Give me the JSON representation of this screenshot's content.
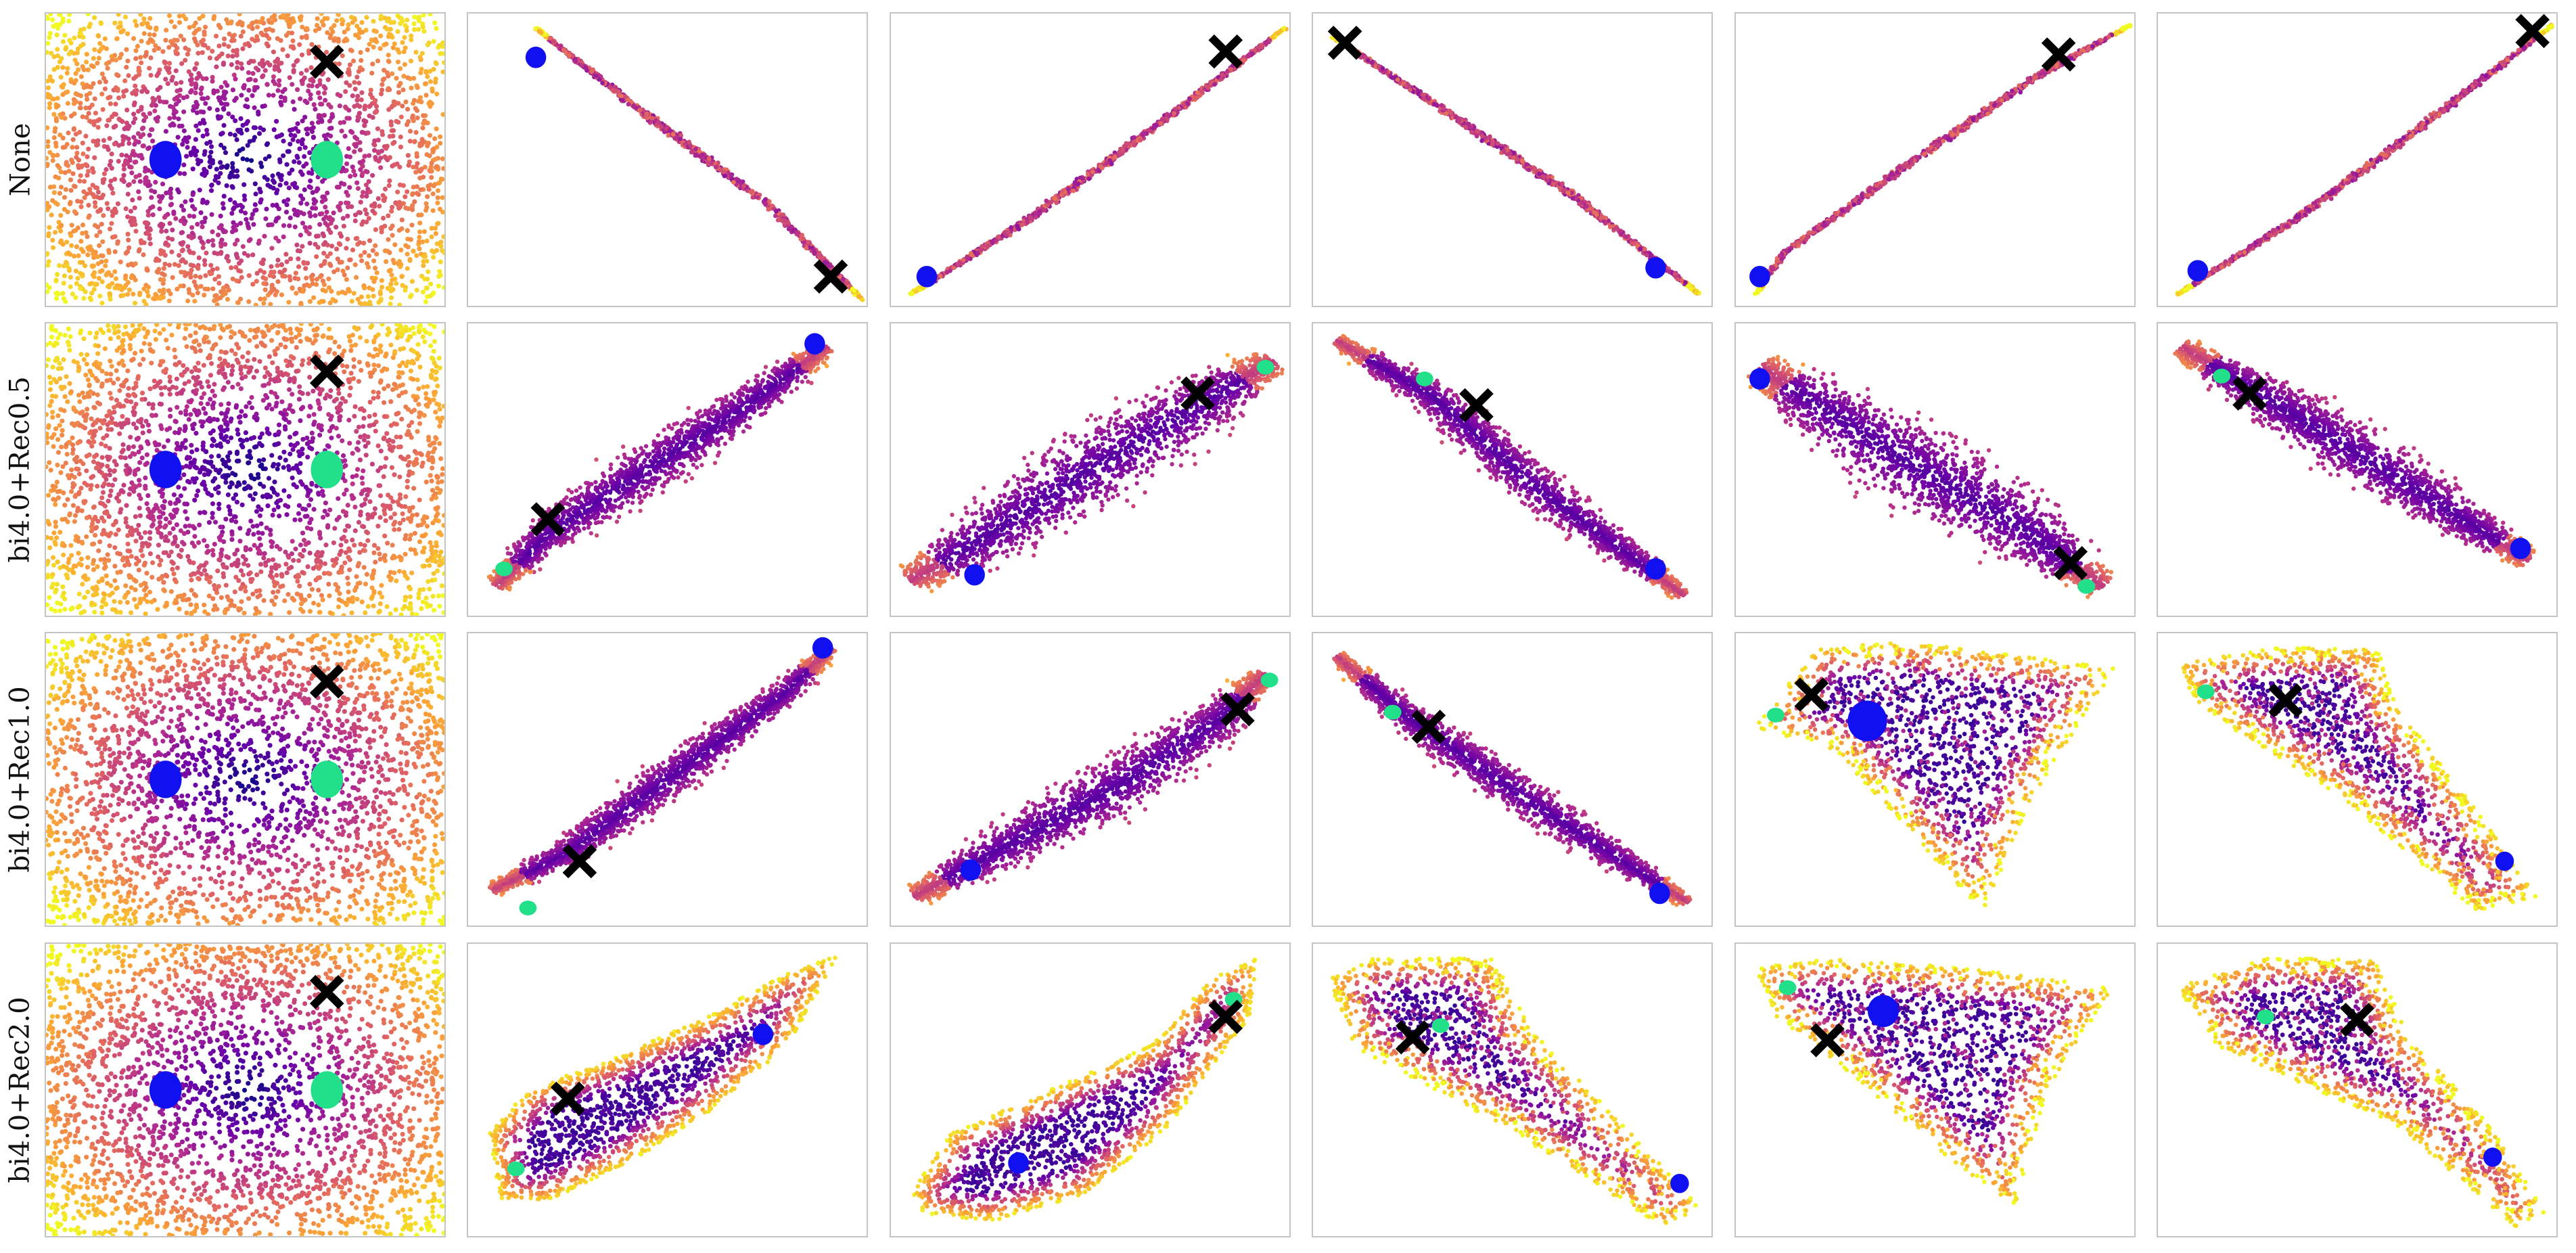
{
  "figure": {
    "colormap": [
      "#0d0887",
      "#6a00a8",
      "#b12a90",
      "#e16462",
      "#fca636",
      "#f0f921"
    ],
    "marker_colors": {
      "blue_cluster": "#1010f0",
      "green_cluster": "#22e08a",
      "cross": "#000000"
    }
  },
  "chart_data": {
    "type": "scatter",
    "title": "",
    "xlabel": "",
    "ylabel": "",
    "grid": false,
    "legend": "none",
    "axes_ticks": "hidden",
    "rows": [
      {
        "label": "None",
        "panels": [
          {
            "kind": "disk"
          },
          {
            "kind": "curve",
            "path": [
              [
                0.17,
                0.05
              ],
              [
                0.45,
                0.35
              ],
              [
                0.75,
                0.65
              ],
              [
                0.99,
                0.98
              ]
            ],
            "width": 0.012,
            "blue": [
              0.17,
              0.15
            ],
            "green": null,
            "cross": [
              0.91,
              0.9
            ]
          },
          {
            "kind": "curve",
            "path": [
              [
                0.05,
                0.96
              ],
              [
                0.35,
                0.7
              ],
              [
                0.65,
                0.4
              ],
              [
                0.99,
                0.05
              ]
            ],
            "width": 0.012,
            "blue": [
              0.09,
              0.9
            ],
            "green": null,
            "cross": [
              0.84,
              0.13
            ]
          },
          {
            "kind": "curve",
            "path": [
              [
                0.05,
                0.08
              ],
              [
                0.35,
                0.35
              ],
              [
                0.65,
                0.62
              ],
              [
                0.97,
                0.96
              ]
            ],
            "width": 0.012,
            "blue": [
              0.86,
              0.87
            ],
            "green": null,
            "cross": [
              0.08,
              0.1
            ]
          },
          {
            "kind": "curve",
            "path": [
              [
                0.05,
                0.96
              ],
              [
                0.12,
                0.82
              ],
              [
                0.45,
                0.5
              ],
              [
                0.75,
                0.22
              ],
              [
                0.99,
                0.04
              ]
            ],
            "width": 0.012,
            "blue": [
              0.06,
              0.9
            ],
            "green": null,
            "cross": [
              0.81,
              0.14
            ]
          },
          {
            "kind": "curve",
            "path": [
              [
                0.05,
                0.96
              ],
              [
                0.35,
                0.7
              ],
              [
                0.65,
                0.4
              ],
              [
                0.99,
                0.04
              ]
            ],
            "width": 0.012,
            "blue": [
              0.1,
              0.88
            ],
            "green": null,
            "cross": [
              0.94,
              0.06
            ]
          }
        ]
      },
      {
        "label": "bi4.0+Rec0.5",
        "panels": [
          {
            "kind": "disk"
          },
          {
            "kind": "curve",
            "path": [
              [
                0.07,
                0.9
              ],
              [
                0.2,
                0.72
              ],
              [
                0.45,
                0.5
              ],
              [
                0.68,
                0.3
              ],
              [
                0.9,
                0.08
              ]
            ],
            "width": 0.085,
            "blue": [
              0.87,
              0.07
            ],
            "green": [
              0.09,
              0.84
            ],
            "cross": [
              0.2,
              0.67
            ]
          },
          {
            "kind": "curve",
            "path": [
              [
                0.05,
                0.88
              ],
              [
                0.25,
                0.72
              ],
              [
                0.5,
                0.5
              ],
              [
                0.75,
                0.3
              ],
              [
                0.96,
                0.13
              ]
            ],
            "width": 0.14,
            "blue": [
              0.21,
              0.86
            ],
            "green": [
              0.94,
              0.15
            ],
            "cross": [
              0.77,
              0.24
            ]
          },
          {
            "kind": "curve",
            "path": [
              [
                0.06,
                0.06
              ],
              [
                0.3,
                0.25
              ],
              [
                0.55,
                0.55
              ],
              [
                0.78,
                0.78
              ],
              [
                0.93,
                0.93
              ]
            ],
            "width": 0.07,
            "blue": [
              0.86,
              0.84
            ],
            "green": [
              0.28,
              0.19
            ],
            "cross": [
              0.41,
              0.28
            ]
          },
          {
            "kind": "curve",
            "path": [
              [
                0.06,
                0.15
              ],
              [
                0.4,
                0.45
              ],
              [
                0.72,
                0.7
              ],
              [
                0.92,
                0.9
              ]
            ],
            "width": 0.15,
            "blue": [
              0.06,
              0.19
            ],
            "green": [
              0.88,
              0.9
            ],
            "cross": [
              0.84,
              0.82
            ]
          },
          {
            "kind": "curve",
            "path": [
              [
                0.06,
                0.08
              ],
              [
                0.3,
                0.28
              ],
              [
                0.6,
                0.53
              ],
              [
                0.93,
                0.81
              ]
            ],
            "width": 0.1,
            "blue": [
              0.91,
              0.77
            ],
            "green": [
              0.16,
              0.18
            ],
            "cross": [
              0.23,
              0.24
            ]
          }
        ]
      },
      {
        "label": "bi4.0+Rec1.0",
        "panels": [
          {
            "kind": "disk"
          },
          {
            "kind": "curve",
            "path": [
              [
                0.06,
                0.88
              ],
              [
                0.25,
                0.75
              ],
              [
                0.55,
                0.45
              ],
              [
                0.8,
                0.2
              ],
              [
                0.91,
                0.05
              ]
            ],
            "width": 0.065,
            "blue": [
              0.89,
              0.05
            ],
            "green": [
              0.15,
              0.94
            ],
            "cross": [
              0.28,
              0.78
            ]
          },
          {
            "kind": "curve",
            "path": [
              [
                0.06,
                0.9
              ],
              [
                0.3,
                0.72
              ],
              [
                0.6,
                0.5
              ],
              [
                0.82,
                0.3
              ],
              [
                0.94,
                0.14
              ]
            ],
            "width": 0.1,
            "blue": [
              0.2,
              0.81
            ],
            "green": [
              0.95,
              0.16
            ],
            "cross": [
              0.87,
              0.26
            ]
          },
          {
            "kind": "curve",
            "path": [
              [
                0.06,
                0.08
              ],
              [
                0.25,
                0.3
              ],
              [
                0.55,
                0.58
              ],
              [
                0.8,
                0.8
              ],
              [
                0.94,
                0.92
              ]
            ],
            "width": 0.065,
            "blue": [
              0.87,
              0.89
            ],
            "green": [
              0.2,
              0.27
            ],
            "cross": [
              0.29,
              0.32
            ]
          },
          {
            "kind": "fan",
            "polygon": [
              [
                0.05,
                0.32
              ],
              [
                0.2,
                0.05
              ],
              [
                0.45,
                0.03
              ],
              [
                0.95,
                0.12
              ],
              [
                0.75,
                0.55
              ],
              [
                0.62,
                0.95
              ],
              [
                0.45,
                0.7
              ],
              [
                0.25,
                0.4
              ]
            ],
            "blue": [
              0.33,
              0.3
            ],
            "blue_size": 1.9,
            "green": [
              0.1,
              0.28
            ],
            "cross": [
              0.19,
              0.21
            ]
          },
          {
            "kind": "fan",
            "polygon": [
              [
                0.05,
                0.1
              ],
              [
                0.3,
                0.05
              ],
              [
                0.55,
                0.05
              ],
              [
                0.6,
                0.25
              ],
              [
                0.85,
                0.7
              ],
              [
                0.95,
                0.9
              ],
              [
                0.8,
                0.95
              ],
              [
                0.45,
                0.55
              ],
              [
                0.1,
                0.25
              ]
            ],
            "blue": [
              0.87,
              0.78
            ],
            "blue_size": 0.9,
            "green": [
              0.12,
              0.2
            ],
            "cross": [
              0.32,
              0.23
            ]
          }
        ]
      },
      {
        "label": "bi4.0+Rec2.0",
        "panels": [
          {
            "kind": "disk"
          },
          {
            "kind": "blob",
            "polygon": [
              [
                0.05,
                0.65
              ],
              [
                0.15,
                0.5
              ],
              [
                0.35,
                0.4
              ],
              [
                0.6,
                0.25
              ],
              [
                0.8,
                0.1
              ],
              [
                0.93,
                0.04
              ],
              [
                0.8,
                0.35
              ],
              [
                0.6,
                0.58
              ],
              [
                0.4,
                0.75
              ],
              [
                0.2,
                0.88
              ],
              [
                0.08,
                0.88
              ]
            ],
            "blue": [
              0.74,
              0.31
            ],
            "green": [
              0.12,
              0.77
            ],
            "cross": [
              0.25,
              0.53
            ]
          },
          {
            "kind": "blob",
            "polygon": [
              [
                0.05,
                0.85
              ],
              [
                0.15,
                0.65
              ],
              [
                0.4,
                0.5
              ],
              [
                0.65,
                0.35
              ],
              [
                0.8,
                0.12
              ],
              [
                0.92,
                0.05
              ],
              [
                0.9,
                0.25
              ],
              [
                0.7,
                0.62
              ],
              [
                0.5,
                0.85
              ],
              [
                0.25,
                0.95
              ],
              [
                0.08,
                0.92
              ]
            ],
            "blue": [
              0.32,
              0.75
            ],
            "green": [
              0.86,
              0.19
            ],
            "cross": [
              0.84,
              0.25
            ]
          },
          {
            "kind": "fan",
            "polygon": [
              [
                0.04,
                0.12
              ],
              [
                0.15,
                0.05
              ],
              [
                0.45,
                0.05
              ],
              [
                0.55,
                0.3
              ],
              [
                0.85,
                0.72
              ],
              [
                0.97,
                0.9
              ],
              [
                0.88,
                0.97
              ],
              [
                0.45,
                0.6
              ],
              [
                0.1,
                0.35
              ]
            ],
            "blue": [
              0.92,
              0.82
            ],
            "blue_size": 0.9,
            "green": [
              0.32,
              0.28
            ],
            "cross": [
              0.25,
              0.32
            ]
          },
          {
            "kind": "fan",
            "polygon": [
              [
                0.05,
                0.08
              ],
              [
                0.25,
                0.05
              ],
              [
                0.55,
                0.08
              ],
              [
                0.95,
                0.15
              ],
              [
                0.78,
                0.5
              ],
              [
                0.7,
                0.9
              ],
              [
                0.55,
                0.75
              ],
              [
                0.25,
                0.4
              ],
              [
                0.1,
                0.25
              ]
            ],
            "blue": [
              0.37,
              0.23
            ],
            "blue_size": 1.5,
            "green": [
              0.13,
              0.15
            ],
            "cross": [
              0.23,
              0.33
            ]
          },
          {
            "kind": "fan",
            "polygon": [
              [
                0.05,
                0.15
              ],
              [
                0.25,
                0.05
              ],
              [
                0.55,
                0.05
              ],
              [
                0.62,
                0.3
              ],
              [
                0.85,
                0.65
              ],
              [
                0.97,
                0.92
              ],
              [
                0.9,
                0.97
              ],
              [
                0.6,
                0.62
              ],
              [
                0.15,
                0.35
              ]
            ],
            "blue": [
              0.84,
              0.73
            ],
            "blue_size": 0.9,
            "green": [
              0.27,
              0.25
            ],
            "cross": [
              0.5,
              0.26
            ]
          }
        ]
      }
    ]
  }
}
